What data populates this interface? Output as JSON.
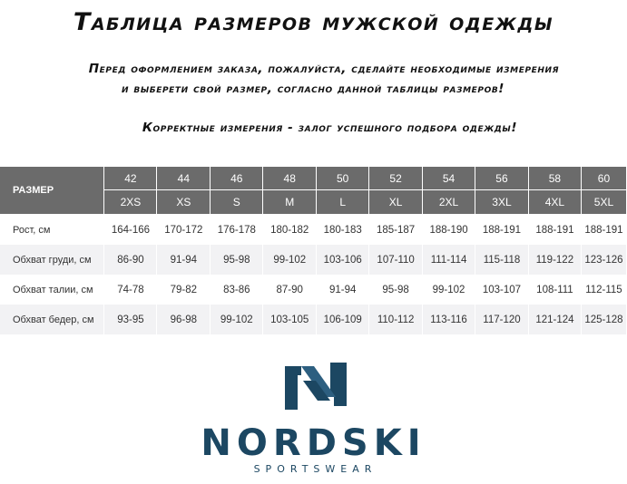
{
  "title": "Таблица размеров мужской одежды",
  "subtitle_line1": "Перед оформлением заказа, пожалуйста, сделайте необходимые измерения",
  "subtitle_line2": "и выберети свой размер, согласно данной таблицы размеров!",
  "subtitle_line3": "Корректные измерения - залог успешного подбора одежды!",
  "table": {
    "header_label": "РАЗМЕР",
    "sizes_ru": [
      "42",
      "44",
      "46",
      "48",
      "50",
      "52",
      "54",
      "56",
      "58",
      "60"
    ],
    "sizes_intl": [
      "2XS",
      "XS",
      "S",
      "M",
      "L",
      "XL",
      "2XL",
      "3XL",
      "4XL",
      "5XL"
    ],
    "rows": [
      {
        "label": "Рост, см",
        "values": [
          "164-166",
          "170-172",
          "176-178",
          "180-182",
          "180-183",
          "185-187",
          "188-190",
          "188-191",
          "188-191",
          "188-191"
        ]
      },
      {
        "label": "Обхват груди, см",
        "values": [
          "86-90",
          "91-94",
          "95-98",
          "99-102",
          "103-106",
          "107-110",
          "111-114",
          "115-118",
          "119-122",
          "123-126"
        ]
      },
      {
        "label": "Обхват талии, см",
        "values": [
          "74-78",
          "79-82",
          "83-86",
          "87-90",
          "91-94",
          "95-98",
          "99-102",
          "103-107",
          "108-111",
          "112-115"
        ]
      },
      {
        "label": "Обхват бедер, см",
        "values": [
          "93-95",
          "96-98",
          "99-102",
          "103-105",
          "106-109",
          "110-112",
          "113-116",
          "117-120",
          "121-124",
          "125-128"
        ]
      }
    ]
  },
  "logo": {
    "brand": "NORDSKI",
    "tagline": "SPORTSWEAR",
    "icon": "nordski-n-logo-icon",
    "colors": {
      "dark": "#1c4762",
      "light": "#2d5f80"
    }
  }
}
